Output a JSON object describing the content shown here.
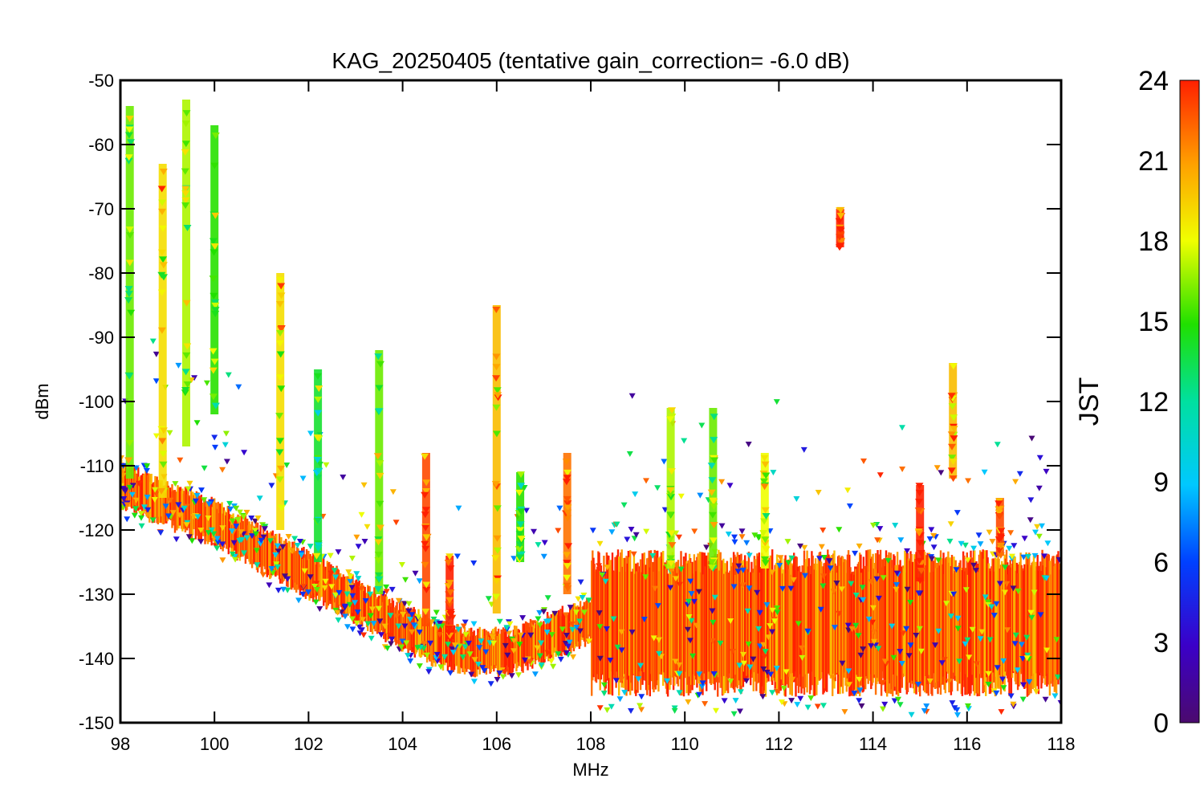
{
  "chart_data": {
    "type": "scatter",
    "title": "KAG_20250405 (tentative gain_correction= -6.0 dB)",
    "xlabel": "MHz",
    "ylabel": "dBm",
    "xlim": [
      98,
      118
    ],
    "ylim": [
      -150,
      -50
    ],
    "xticks": [
      98,
      100,
      102,
      104,
      106,
      108,
      110,
      112,
      114,
      116,
      118
    ],
    "yticks": [
      -50,
      -60,
      -70,
      -80,
      -90,
      -100,
      -110,
      -120,
      -130,
      -140,
      -150
    ],
    "grid": false,
    "colorbar": {
      "label": "JST",
      "range": [
        0,
        24
      ],
      "ticks": [
        0,
        3,
        6,
        9,
        12,
        15,
        18,
        21,
        24
      ]
    },
    "noise_floor": [
      {
        "x": 98,
        "y": -113
      },
      {
        "x": 99,
        "y": -116
      },
      {
        "x": 100,
        "y": -119
      },
      {
        "x": 101,
        "y": -123
      },
      {
        "x": 102,
        "y": -127
      },
      {
        "x": 103,
        "y": -131
      },
      {
        "x": 104,
        "y": -135
      },
      {
        "x": 104.8,
        "y": -138
      },
      {
        "x": 105.5,
        "y": -139
      },
      {
        "x": 106.3,
        "y": -139
      },
      {
        "x": 107,
        "y": -137
      },
      {
        "x": 108,
        "y": -134
      },
      {
        "x": 113,
        "y": -134
      },
      {
        "x": 118,
        "y": -134
      }
    ],
    "peaks": [
      {
        "x": 98.2,
        "top": -54,
        "bottom": -112,
        "jst": 16
      },
      {
        "x": 98.9,
        "top": -63,
        "bottom": -115,
        "jst": 19
      },
      {
        "x": 99.4,
        "top": -53,
        "bottom": -107,
        "jst": 17
      },
      {
        "x": 100.0,
        "top": -57,
        "bottom": -102,
        "jst": 15
      },
      {
        "x": 101.4,
        "top": -80,
        "bottom": -120,
        "jst": 19
      },
      {
        "x": 102.2,
        "top": -95,
        "bottom": -125,
        "jst": 14
      },
      {
        "x": 103.5,
        "top": -92,
        "bottom": -130,
        "jst": 16
      },
      {
        "x": 104.5,
        "top": -108,
        "bottom": -135,
        "jst": 23
      },
      {
        "x": 105.0,
        "top": -124,
        "bottom": -137,
        "jst": 24
      },
      {
        "x": 106.0,
        "top": -85,
        "bottom": -133,
        "jst": 20
      },
      {
        "x": 106.5,
        "top": -111,
        "bottom": -125,
        "jst": 15
      },
      {
        "x": 107.5,
        "top": -108,
        "bottom": -130,
        "jst": 22
      },
      {
        "x": 109.7,
        "top": -101,
        "bottom": -126,
        "jst": 17
      },
      {
        "x": 110.6,
        "top": -101,
        "bottom": -126,
        "jst": 16
      },
      {
        "x": 111.7,
        "top": -108,
        "bottom": -126,
        "jst": 18
      },
      {
        "x": 113.3,
        "top": -70,
        "bottom": -76,
        "jst": 24
      },
      {
        "x": 115.0,
        "top": -113,
        "bottom": -128,
        "jst": 24
      },
      {
        "x": 115.7,
        "top": -94,
        "bottom": -112,
        "jst": 20
      },
      {
        "x": 116.7,
        "top": -115,
        "bottom": -124,
        "jst": 23
      }
    ]
  }
}
